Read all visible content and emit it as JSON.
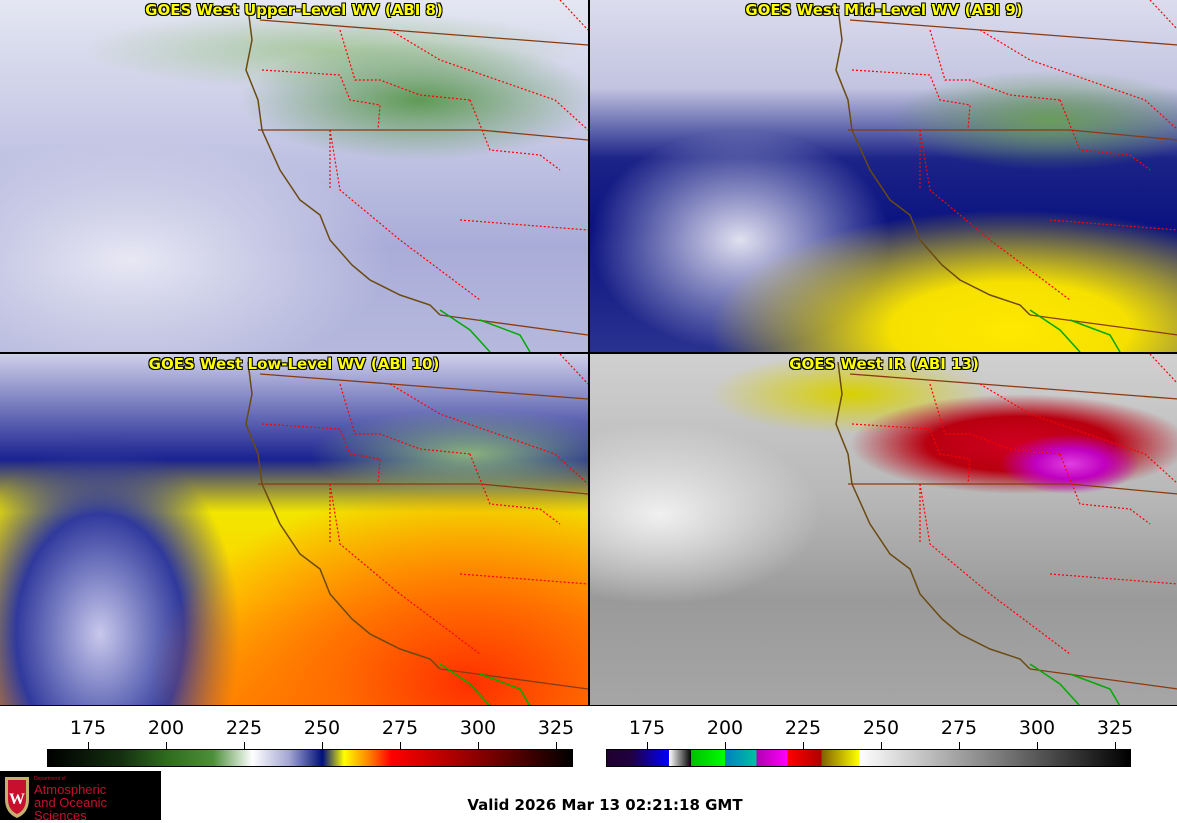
{
  "panels": [
    {
      "title": "GOES West Upper-Level WV (ABI 8)"
    },
    {
      "title": "GOES West Mid-Level WV (ABI 9)"
    },
    {
      "title": "GOES West Low-Level WV (ABI 10)"
    },
    {
      "title": "GOES West IR (ABI 13)"
    }
  ],
  "colorbars": [
    {
      "name": "water-vapor",
      "ticks": [
        "175",
        "200",
        "225",
        "250",
        "275",
        "300",
        "325"
      ]
    },
    {
      "name": "infrared",
      "ticks": [
        "175",
        "200",
        "225",
        "250",
        "275",
        "300",
        "325"
      ]
    }
  ],
  "logo": {
    "line1": "Department of",
    "line2": "Atmospheric",
    "line3": "and Oceanic Sciences"
  },
  "valid_time": "Valid 2026 Mar 13 02:21:18 GMT",
  "colors": {
    "title": "#ffff00",
    "coastline": "#6b4a10",
    "state_lines": "#ff0000",
    "mexico_border": "#00aa00"
  }
}
